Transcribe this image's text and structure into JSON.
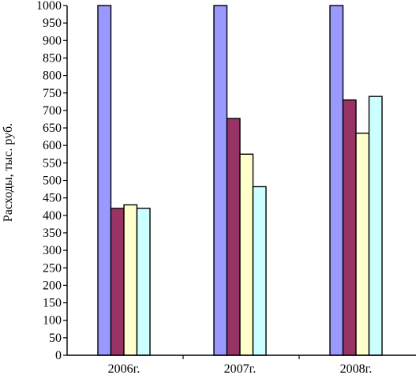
{
  "colors": {
    "series": [
      "#9999ff",
      "#993366",
      "#ffffcc",
      "#ccffff"
    ],
    "axis": "#000000"
  },
  "chart_data": {
    "type": "bar",
    "title": "",
    "xlabel": "",
    "ylabel": "Расходы, тыс. руб.",
    "ylim": [
      0,
      1000
    ],
    "yticks": [
      0,
      50,
      100,
      150,
      200,
      250,
      300,
      350,
      400,
      450,
      500,
      550,
      600,
      650,
      700,
      750,
      800,
      850,
      900,
      950,
      1000
    ],
    "categories": [
      "2006г.",
      "2007г.",
      "2008г."
    ],
    "grid": false,
    "legend": "none",
    "series": [
      {
        "values": [
          1000,
          1000,
          1000
        ]
      },
      {
        "values": [
          420,
          677,
          730
        ]
      },
      {
        "values": [
          430,
          575,
          635
        ]
      },
      {
        "values": [
          420,
          482,
          740
        ]
      }
    ]
  }
}
